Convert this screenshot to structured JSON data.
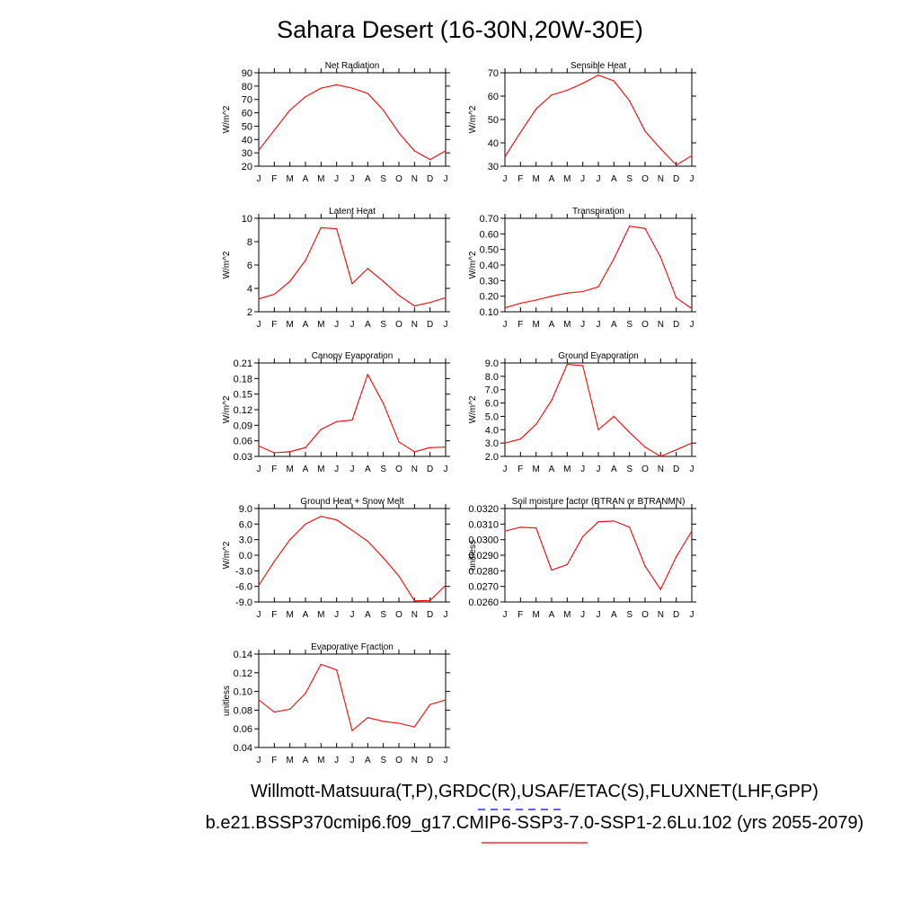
{
  "title": "Sahara Desert (16-30N,20W-30E)",
  "line_color": "#ff0000",
  "legend": {
    "obs_text": "Willmott-Matsuura(T,P),GRDC(R),USAF/ETAC(S),FLUXNET(LHF,GPP)",
    "obs_line_color": "#0000ff",
    "case_text": "b.e21.BSSP370cmip6.f09_g17.CMIP6-SSP3-7.0-SSP1-2.6Lu.102 (yrs 2055-2079)",
    "case_line_color": "#ff0000"
  },
  "chart_data": [
    {
      "type": "line",
      "title": "Net Radiation",
      "ylabel": "W/m^2",
      "ylim": [
        20,
        90
      ],
      "yticks": [
        20,
        30,
        40,
        50,
        60,
        70,
        80,
        90
      ],
      "ytick_labels": [
        "20",
        "30",
        "40",
        "50",
        "60",
        "70",
        "80",
        "90"
      ],
      "categories": [
        "J",
        "F",
        "M",
        "A",
        "M",
        "J",
        "J",
        "A",
        "S",
        "O",
        "N",
        "D",
        "J"
      ],
      "values": [
        32,
        47,
        62,
        72,
        78.5,
        81,
        78.5,
        74.5,
        62,
        45,
        31.5,
        25,
        31.5
      ]
    },
    {
      "type": "line",
      "title": "Sensible Heat",
      "ylabel": "W/m^2",
      "ylim": [
        30,
        70
      ],
      "yticks": [
        30,
        40,
        50,
        60,
        70
      ],
      "ytick_labels": [
        "30",
        "40",
        "50",
        "60",
        "70"
      ],
      "categories": [
        "J",
        "F",
        "M",
        "A",
        "M",
        "J",
        "J",
        "A",
        "S",
        "O",
        "N",
        "D",
        "J"
      ],
      "values": [
        34,
        44.5,
        54.5,
        60.5,
        62.5,
        65.5,
        69,
        66.5,
        58,
        45,
        37.5,
        30.5,
        34.5
      ]
    },
    {
      "type": "line",
      "title": "Latent Heat",
      "ylabel": "W/m^2",
      "ylim": [
        2,
        10
      ],
      "yticks": [
        2,
        4,
        6,
        8,
        10
      ],
      "ytick_labels": [
        "2",
        "4",
        "6",
        "8",
        "10"
      ],
      "categories": [
        "J",
        "F",
        "M",
        "A",
        "M",
        "J",
        "J",
        "A",
        "S",
        "O",
        "N",
        "D",
        "J"
      ],
      "values": [
        3.1,
        3.5,
        4.6,
        6.4,
        9.2,
        9.1,
        4.4,
        5.7,
        4.6,
        3.4,
        2.5,
        2.8,
        3.2
      ]
    },
    {
      "type": "line",
      "title": "Transpiration",
      "ylabel": "W/m^2",
      "ylim": [
        0.1,
        0.7
      ],
      "yticks": [
        0.1,
        0.2,
        0.3,
        0.4,
        0.5,
        0.6,
        0.7
      ],
      "ytick_labels": [
        "0.10",
        "0.20",
        "0.30",
        "0.40",
        "0.50",
        "0.60",
        "0.70"
      ],
      "categories": [
        "J",
        "F",
        "M",
        "A",
        "M",
        "J",
        "J",
        "A",
        "S",
        "O",
        "N",
        "D",
        "J"
      ],
      "values": [
        0.125,
        0.155,
        0.175,
        0.2,
        0.22,
        0.23,
        0.26,
        0.44,
        0.65,
        0.635,
        0.45,
        0.19,
        0.12
      ]
    },
    {
      "type": "line",
      "title": "Canopy Evaporation",
      "ylabel": "W/m^2",
      "ylim": [
        0.03,
        0.21
      ],
      "yticks": [
        0.03,
        0.06,
        0.09,
        0.12,
        0.15,
        0.18,
        0.21
      ],
      "ytick_labels": [
        "0.03",
        "0.06",
        "0.09",
        "0.12",
        "0.15",
        "0.18",
        "0.21"
      ],
      "categories": [
        "J",
        "F",
        "M",
        "A",
        "M",
        "J",
        "J",
        "A",
        "S",
        "O",
        "N",
        "D",
        "J"
      ],
      "values": [
        0.05,
        0.037,
        0.039,
        0.047,
        0.082,
        0.097,
        0.1,
        0.188,
        0.132,
        0.058,
        0.039,
        0.047,
        0.048
      ]
    },
    {
      "type": "line",
      "title": "Ground Evaporation",
      "ylabel": "W/m^2",
      "ylim": [
        2,
        9
      ],
      "yticks": [
        2,
        3,
        4,
        5,
        6,
        7,
        8,
        9
      ],
      "ytick_labels": [
        "2.0",
        "3.0",
        "4.0",
        "5.0",
        "6.0",
        "7.0",
        "8.0",
        "9.0"
      ],
      "categories": [
        "J",
        "F",
        "M",
        "A",
        "M",
        "J",
        "J",
        "A",
        "S",
        "O",
        "N",
        "D",
        "J"
      ],
      "values": [
        3.0,
        3.3,
        4.4,
        6.2,
        8.9,
        8.8,
        4.0,
        5.0,
        3.8,
        2.7,
        2.0,
        2.5,
        3.0
      ]
    },
    {
      "type": "line",
      "title": "Ground Heat + Snow Melt",
      "ylabel": "W/m^2",
      "ylim": [
        -9,
        9
      ],
      "yticks": [
        -9,
        -6,
        -3,
        0,
        3,
        6,
        9
      ],
      "ytick_labels": [
        "-9.0",
        "-6.0",
        "-3.0",
        "0.0",
        "3.0",
        "6.0",
        "9.0"
      ],
      "categories": [
        "J",
        "F",
        "M",
        "A",
        "M",
        "J",
        "J",
        "A",
        "S",
        "O",
        "N",
        "D",
        "J"
      ],
      "values": [
        -5.8,
        -1.2,
        3.0,
        6.0,
        7.5,
        6.8,
        4.8,
        2.7,
        -0.5,
        -4.0,
        -8.8,
        -8.7,
        -5.8
      ]
    },
    {
      "type": "line",
      "title": "Soil moisture factor (BTRAN or BTRANMN)",
      "ylabel": "unitless",
      "ylim": [
        0.026,
        0.032
      ],
      "yticks": [
        0.026,
        0.027,
        0.028,
        0.029,
        0.03,
        0.031,
        0.032
      ],
      "ytick_labels": [
        "0.0260",
        "0.0270",
        "0.0280",
        "0.0290",
        "0.0300",
        "0.0310",
        "0.0320"
      ],
      "categories": [
        "J",
        "F",
        "M",
        "A",
        "M",
        "J",
        "J",
        "A",
        "S",
        "O",
        "N",
        "D",
        "J"
      ],
      "values": [
        0.03055,
        0.0308,
        0.03075,
        0.02805,
        0.0284,
        0.0302,
        0.03115,
        0.0312,
        0.0308,
        0.0283,
        0.0268,
        0.0289,
        0.03055
      ]
    },
    {
      "type": "line",
      "title": "Evaporative Fraction",
      "ylabel": "unitless",
      "ylim": [
        0.04,
        0.14
      ],
      "yticks": [
        0.04,
        0.06,
        0.08,
        0.1,
        0.12,
        0.14
      ],
      "ytick_labels": [
        "0.04",
        "0.06",
        "0.08",
        "0.10",
        "0.12",
        "0.14"
      ],
      "categories": [
        "J",
        "F",
        "M",
        "A",
        "M",
        "J",
        "J",
        "A",
        "S",
        "O",
        "N",
        "D",
        "J"
      ],
      "values": [
        0.091,
        0.078,
        0.081,
        0.098,
        0.129,
        0.123,
        0.058,
        0.072,
        0.068,
        0.066,
        0.062,
        0.086,
        0.091
      ]
    }
  ]
}
